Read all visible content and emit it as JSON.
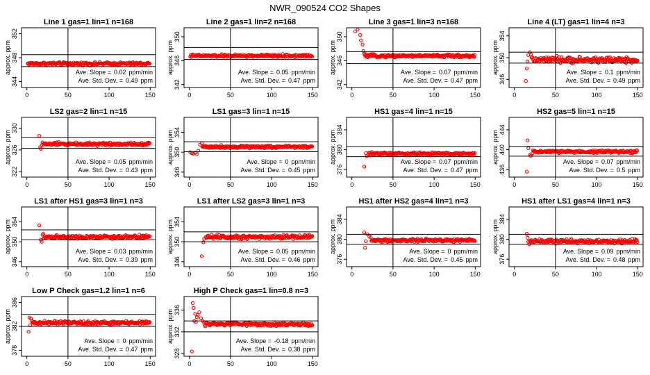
{
  "figure_title": "NWR_090524  CO2 Shapes",
  "ylabel": "approx. ppm",
  "slope_label": "Ave. Slope =",
  "std_label": "Ave. Std. Dev. =",
  "colors": {
    "points": "#ff0000",
    "lines": "#000000",
    "frame": "#000000"
  },
  "chart_data": [
    {
      "type": "scatter",
      "title": "Line 1 gas=1 lin=1 n=168",
      "xlim": [
        0,
        150
      ],
      "xticks": [
        0,
        50,
        100,
        150
      ],
      "ylim": [
        343,
        353
      ],
      "yticks": [
        344,
        348,
        352
      ],
      "center": 347.0,
      "noise": 0.18,
      "early": [],
      "hlines": [
        346.5,
        348.5
      ],
      "vline": 50,
      "slope": "0.02",
      "slope_unit": "ppm/min",
      "std": "0.49",
      "std_unit": "ppm"
    },
    {
      "type": "scatter",
      "title": "Line 2 gas=1 lin=2 n=168",
      "xlim": [
        0,
        150
      ],
      "xticks": [
        0,
        50,
        100,
        150
      ],
      "ylim": [
        341.5,
        351.5
      ],
      "yticks": [
        342,
        346,
        350
      ],
      "center": 346.8,
      "noise": 0.18,
      "early": [],
      "hlines": [
        346.2,
        348.2
      ],
      "vline": 50,
      "slope": "0.05",
      "slope_unit": "ppm/min",
      "std": "0.47",
      "std_unit": "ppm"
    },
    {
      "type": "scatter",
      "title": "Line 3 gas=1 lin=3 n=168",
      "xlim": [
        0,
        150
      ],
      "xticks": [
        0,
        50,
        100,
        150
      ],
      "ylim": [
        341.5,
        351.5
      ],
      "yticks": [
        342,
        346,
        350
      ],
      "center": 346.8,
      "noise": 0.18,
      "early": [
        [
          4,
          350.9
        ],
        [
          7,
          351.2
        ],
        [
          10,
          350.3
        ],
        [
          11,
          349.4
        ],
        [
          13,
          348.7
        ],
        [
          14,
          347.6
        ],
        [
          15,
          347.2
        ]
      ],
      "hlines": [
        345.5,
        347.5
      ],
      "vline": 50,
      "slope": "0.07",
      "slope_unit": "ppm/min",
      "std": "0.47",
      "std_unit": "ppm"
    },
    {
      "type": "scatter",
      "title": "Line 4 (LT) gas=1 lin=4 n=3",
      "xlim": [
        0,
        150
      ],
      "xticks": [
        0,
        50,
        100,
        150
      ],
      "ylim": [
        344.5,
        355.5
      ],
      "yticks": [
        346,
        350,
        354
      ],
      "center": 349.6,
      "noise": 0.4,
      "early": [
        [
          14,
          345.7
        ],
        [
          15,
          348.0
        ],
        [
          16,
          349.3
        ],
        [
          17,
          350.5
        ],
        [
          19,
          351.0
        ],
        [
          20,
          350.6
        ],
        [
          21,
          350.0
        ]
      ],
      "hlines": [
        349.0,
        351.0
      ],
      "vline": 50,
      "slope": "0.1",
      "slope_unit": "ppm/min",
      "std": "0.49",
      "std_unit": "ppm"
    },
    {
      "type": "scatter",
      "title": "LS2 gas=2 lin=1 n=15",
      "xlim": [
        0,
        150
      ],
      "xticks": [
        0,
        50,
        100,
        150
      ],
      "ylim": [
        321,
        332
      ],
      "yticks": [
        322,
        326,
        330
      ],
      "center": 327.1,
      "noise": 0.22,
      "early": [
        [
          15,
          328.6
        ],
        [
          16,
          326.5
        ],
        [
          17,
          326.2
        ],
        [
          18,
          326.9
        ],
        [
          19,
          327.4
        ],
        [
          20,
          327.0
        ]
      ],
      "hlines": [
        326.3,
        328.3
      ],
      "vline": 50,
      "slope": "0.05",
      "slope_unit": "ppm/min",
      "std": "0.43",
      "std_unit": "ppm"
    },
    {
      "type": "scatter",
      "title": "LS1 gas=3 lin=1 n=15",
      "xlim": [
        0,
        150
      ],
      "xticks": [
        0,
        50,
        100,
        150
      ],
      "ylim": [
        345,
        357
      ],
      "yticks": [
        346,
        350,
        354
      ],
      "center": 351.1,
      "noise": 0.22,
      "early": [
        [
          1,
          350.0
        ],
        [
          3,
          349.8
        ],
        [
          5,
          349.7
        ],
        [
          7,
          349.9
        ],
        [
          9,
          349.6
        ],
        [
          11,
          350.3
        ],
        [
          13,
          351.5
        ],
        [
          15,
          351.8
        ]
      ],
      "hlines": [
        350.1,
        352.1
      ],
      "vline": 50,
      "slope": "0",
      "slope_unit": "ppm/min",
      "std": "0.45",
      "std_unit": "ppm"
    },
    {
      "type": "scatter",
      "title": "HS1 gas=4 lin=1 n=15",
      "xlim": [
        0,
        150
      ],
      "xticks": [
        0,
        50,
        100,
        150
      ],
      "ylim": [
        374.5,
        386.5
      ],
      "yticks": [
        376,
        380,
        384
      ],
      "center": 379.2,
      "noise": 0.22,
      "early": [
        [
          15,
          376.6
        ],
        [
          17,
          379.3
        ],
        [
          18,
          378.7
        ],
        [
          20,
          379.0
        ]
      ],
      "hlines": [
        378.6,
        380.6
      ],
      "vline": 50,
      "slope": "0.07",
      "slope_unit": "ppm/min",
      "std": "0.47",
      "std_unit": "ppm"
    },
    {
      "type": "scatter",
      "title": "HS2 gas=5 lin=1 n=15",
      "xlim": [
        0,
        150
      ],
      "xticks": [
        0,
        50,
        100,
        150
      ],
      "ylim": [
        434.5,
        446.5
      ],
      "yticks": [
        436,
        440,
        444
      ],
      "center": 439.6,
      "noise": 0.22,
      "early": [
        [
          15,
          435.6
        ],
        [
          16,
          441.9
        ],
        [
          17,
          440.3
        ],
        [
          19,
          439.0
        ],
        [
          20,
          438.8
        ],
        [
          22,
          439.3
        ]
      ],
      "hlines": [
        438.7,
        440.7
      ],
      "vline": 50,
      "slope": "0.07",
      "slope_unit": "ppm/min",
      "std": "0.5",
      "std_unit": "ppm"
    },
    {
      "type": "scatter",
      "title": "LS1 after HS1 gas=3 lin=1 n=3",
      "xlim": [
        0,
        150
      ],
      "xticks": [
        0,
        50,
        100,
        150
      ],
      "ylim": [
        345,
        357
      ],
      "yticks": [
        346,
        350,
        354
      ],
      "center": 351.0,
      "noise": 0.25,
      "early": [
        [
          15,
          353.3
        ],
        [
          17,
          350.4
        ],
        [
          18,
          350.0
        ],
        [
          19,
          351.4
        ],
        [
          20,
          351.6
        ]
      ],
      "hlines": [
        350.4,
        352.4
      ],
      "vline": 50,
      "slope": "0.03",
      "slope_unit": "ppm/min",
      "std": "0.39",
      "std_unit": "ppm"
    },
    {
      "type": "scatter",
      "title": "LS1 after LS2 gas=3 lin=1 n=3",
      "xlim": [
        0,
        150
      ],
      "xticks": [
        0,
        50,
        100,
        150
      ],
      "ylim": [
        345,
        357
      ],
      "yticks": [
        346,
        350,
        354
      ],
      "center": 351.0,
      "noise": 0.35,
      "early": [
        [
          15,
          347.1
        ],
        [
          17,
          349.9
        ],
        [
          18,
          350.6
        ],
        [
          20,
          351.0
        ]
      ],
      "hlines": [
        350.0,
        352.0
      ],
      "vline": 50,
      "slope": "0.05",
      "slope_unit": "ppm/min",
      "std": "0.46",
      "std_unit": "ppm"
    },
    {
      "type": "scatter",
      "title": "HS1 after HS2 gas=4 lin=1 n=3",
      "xlim": [
        0,
        150
      ],
      "xticks": [
        0,
        50,
        100,
        150
      ],
      "ylim": [
        374.5,
        386.5
      ],
      "yticks": [
        376,
        380,
        384
      ],
      "center": 379.8,
      "noise": 0.25,
      "early": [
        [
          15,
          381.4
        ],
        [
          16,
          378.3
        ],
        [
          17,
          379.6
        ],
        [
          19,
          381.0
        ],
        [
          21,
          380.6
        ],
        [
          23,
          380.4
        ]
      ],
      "hlines": [
        379.0,
        381.0
      ],
      "vline": 50,
      "slope": "0",
      "slope_unit": "ppm/min",
      "std": "0.45",
      "std_unit": "ppm"
    },
    {
      "type": "scatter",
      "title": "HS1 after LS1 gas=4 lin=1 n=3",
      "xlim": [
        0,
        150
      ],
      "xticks": [
        0,
        50,
        100,
        150
      ],
      "ylim": [
        374.5,
        386.5
      ],
      "yticks": [
        376,
        380,
        384
      ],
      "center": 379.6,
      "noise": 0.3,
      "early": [
        [
          15,
          381.1
        ],
        [
          16,
          380.3
        ],
        [
          17,
          379.5
        ],
        [
          18,
          379.0
        ]
      ],
      "hlines": [
        379.0,
        381.0
      ],
      "vline": 50,
      "slope": "0.09",
      "slope_unit": "ppm/min",
      "std": "0.48",
      "std_unit": "ppm"
    },
    {
      "type": "scatter",
      "title": "Low P Check gas=1.2 lin=1 n=6",
      "xlim": [
        0,
        150
      ],
      "xticks": [
        0,
        50,
        100,
        150
      ],
      "ylim": [
        377,
        387
      ],
      "yticks": [
        378,
        382,
        386
      ],
      "center": 382.6,
      "noise": 0.22,
      "early": [
        [
          2,
          381.1
        ],
        [
          3,
          383.5
        ],
        [
          4,
          382.2
        ],
        [
          5,
          383.3
        ],
        [
          6,
          382.9
        ]
      ],
      "hlines": [
        382.0,
        384.0
      ],
      "vline": 50,
      "slope": "0",
      "slope_unit": "ppm/min",
      "std": "0.47",
      "std_unit": "ppm"
    },
    {
      "type": "scatter",
      "title": "High P Check gas=1 lin=0.8 n=3",
      "xlim": [
        0,
        150
      ],
      "xticks": [
        0,
        50,
        100,
        150
      ],
      "ylim": [
        327.5,
        338.5
      ],
      "yticks": [
        328,
        332,
        336
      ],
      "center": 333.4,
      "noise": 0.25,
      "early": [
        [
          3,
          328.4
        ],
        [
          4,
          337.3
        ],
        [
          5,
          336.4
        ],
        [
          6,
          334.0
        ],
        [
          7,
          335.3
        ],
        [
          8,
          333.8
        ],
        [
          9,
          334.7
        ],
        [
          10,
          335.1
        ],
        [
          12,
          335.6
        ],
        [
          14,
          334.5
        ],
        [
          16,
          334.0
        ],
        [
          18,
          333.7
        ]
      ],
      "hlines": [
        332.0,
        334.0
      ],
      "vline": 50,
      "slope": "-0.18",
      "slope_unit": "ppm/min",
      "std": "0.38",
      "std_unit": "ppm"
    }
  ]
}
